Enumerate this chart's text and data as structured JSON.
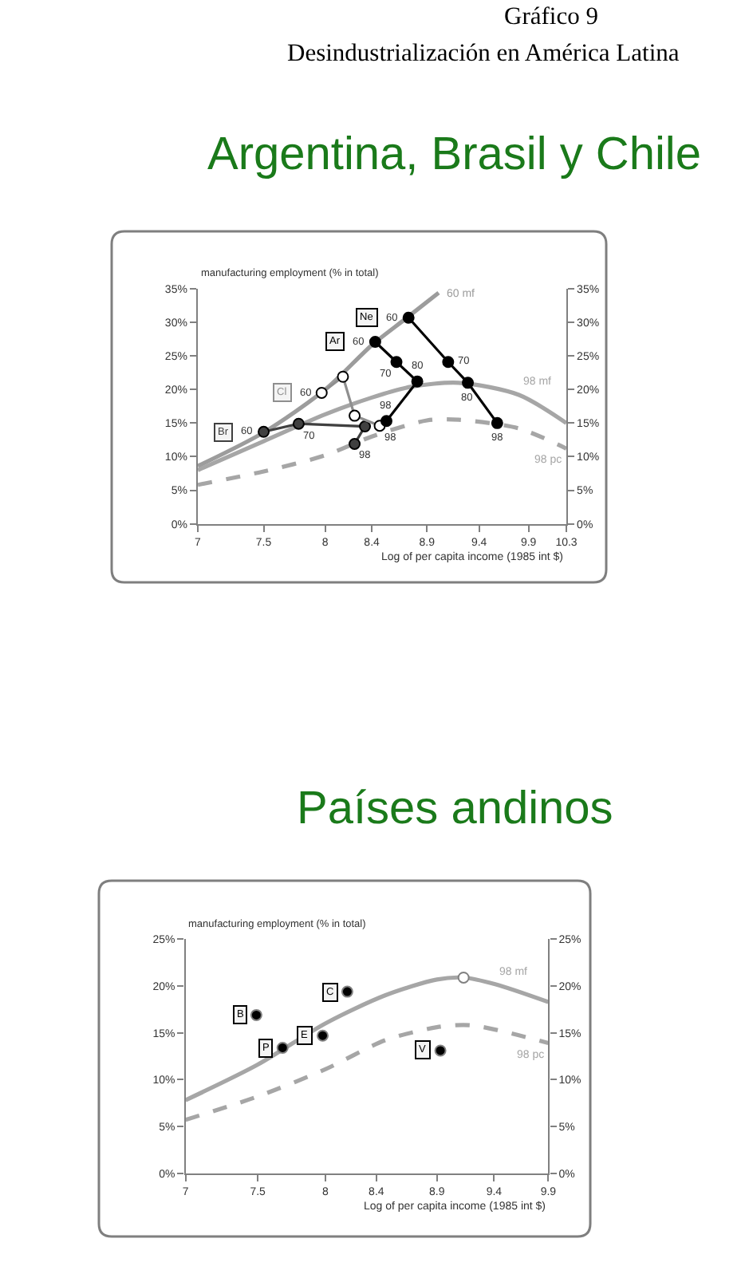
{
  "chart_data": [
    {
      "type": "line",
      "title": "Argentina, Brasil y Chile",
      "annotations": [
        "Gráfico 9",
        "Desindustrialización en América Latina",
        {
          "text": "60",
          "x": 7.5,
          "y": 13.7
        },
        {
          "text": "70",
          "x": 7.78,
          "y": 14.9
        },
        {
          "text": "98",
          "x": 8.25,
          "y": 11.9
        },
        {
          "text": "60",
          "x": 7.97,
          "y": 19.5
        },
        {
          "text": "98",
          "x": 8.47,
          "y": 14.6
        },
        {
          "text": "60",
          "x": 8.43,
          "y": 27.1
        },
        {
          "text": "70",
          "x": 8.62,
          "y": 24.1
        },
        {
          "text": "80",
          "x": 8.81,
          "y": 21.2
        },
        {
          "text": "98",
          "x": 8.53,
          "y": 15.3
        },
        {
          "text": "60",
          "x": 8.73,
          "y": 30.7
        },
        {
          "text": "70",
          "x": 9.1,
          "y": 24.1
        },
        {
          "text": "80",
          "x": 9.29,
          "y": 21.0
        },
        {
          "text": "98",
          "x": 9.58,
          "y": 15.0
        }
      ],
      "xlabel": "Log of per capita income (1985 int $)",
      "ylabel": "manufacturing employment (% in total)",
      "log": "x",
      "xlim": [
        7,
        10.3
      ],
      "xticks": [
        7,
        7.5,
        8,
        8.4,
        8.9,
        9.4,
        9.9,
        10.3
      ],
      "ylim": [
        0,
        35
      ],
      "yticks": [
        {
          "value": 0,
          "label": "0%"
        },
        {
          "value": 5,
          "label": "5%"
        },
        {
          "value": 10,
          "label": "10%"
        },
        {
          "value": 15,
          "label": "15%"
        },
        {
          "value": 20,
          "label": "20%"
        },
        {
          "value": 25,
          "label": "25%"
        },
        {
          "value": 30,
          "label": "30%"
        },
        {
          "value": 35,
          "label": "35%"
        }
      ],
      "y2lim": [
        0,
        35
      ],
      "y2ticks": [
        {
          "value": 0,
          "label": "0%"
        },
        {
          "value": 5,
          "label": "5%"
        },
        {
          "value": 10,
          "label": "10%"
        },
        {
          "value": 15,
          "label": "15%"
        },
        {
          "value": 20,
          "label": "20%"
        },
        {
          "value": 25,
          "label": "25%"
        },
        {
          "value": 30,
          "label": "30%"
        },
        {
          "value": 35,
          "label": "35%"
        }
      ],
      "marker": "circle",
      "line_style": "solid",
      "series": [
        {
          "name": "60 mf",
          "type": "line",
          "marker": "none",
          "color": "#9c9c9c",
          "x": [
            7,
            7.5,
            8,
            8.4,
            8.7,
            9.01
          ],
          "values": [
            8.6,
            13.6,
            20.0,
            26.6,
            30.5,
            34.4
          ]
        },
        {
          "name": "98 mf",
          "type": "line",
          "marker": "none",
          "color": "#a6a6a6",
          "x": [
            7,
            7.5,
            8,
            8.4,
            8.75,
            9.2,
            9.8,
            10.3
          ],
          "values": [
            8.0,
            12.3,
            16.3,
            18.8,
            20.4,
            21.0,
            19.2,
            15.0
          ]
        },
        {
          "name": "98 pc",
          "type": "line",
          "marker": "none",
          "line_style": "dashed",
          "color": "#a6a6a6",
          "x": [
            7,
            7.5,
            8,
            8.4,
            8.9,
            9.2,
            9.8,
            10.3
          ],
          "values": [
            5.8,
            7.8,
            10.2,
            13.0,
            15.4,
            15.5,
            14.2,
            11.2
          ]
        },
        {
          "name": "Br",
          "color": "#404040",
          "x": [
            7.5,
            7.78,
            8.34,
            8.25
          ],
          "values": [
            13.7,
            14.9,
            14.5,
            11.9
          ]
        },
        {
          "name": "Cl",
          "color": "#8f8f8f",
          "colors": [
            "#ffffff",
            "#ffffff",
            "#ffffff",
            "#ffffff"
          ],
          "x": [
            7.97,
            8.15,
            8.25,
            8.47
          ],
          "values": [
            19.5,
            21.9,
            16.1,
            14.6
          ]
        },
        {
          "name": "Ar",
          "color": "#000000",
          "x": [
            8.43,
            8.62,
            8.81,
            8.53
          ],
          "values": [
            27.1,
            24.1,
            21.2,
            15.3
          ]
        },
        {
          "name": "Ne",
          "color": "#000000",
          "x": [
            8.73,
            9.1,
            9.29,
            9.58
          ],
          "values": [
            30.7,
            24.1,
            21.0,
            15.0
          ]
        }
      ]
    },
    {
      "type": "scatter",
      "title": "Países andinos",
      "xlabel": "Log of per capita income (1985 int $)",
      "ylabel": "manufacturing employment (% in total)",
      "log": "x",
      "xlim": [
        7,
        9.9
      ],
      "xticks": [
        7,
        7.5,
        8,
        8.4,
        8.9,
        9.4,
        9.9
      ],
      "ylim": [
        0,
        25
      ],
      "yticks": [
        {
          "value": 0,
          "label": "0%"
        },
        {
          "value": 5,
          "label": "5%"
        },
        {
          "value": 10,
          "label": "10%"
        },
        {
          "value": 15,
          "label": "15%"
        },
        {
          "value": 20,
          "label": "20%"
        },
        {
          "value": 25,
          "label": "25%"
        }
      ],
      "y2lim": [
        0,
        25
      ],
      "y2ticks": [
        {
          "value": 0,
          "label": "0%"
        },
        {
          "value": 5,
          "label": "5%"
        },
        {
          "value": 10,
          "label": "10%"
        },
        {
          "value": 15,
          "label": "15%"
        },
        {
          "value": 20,
          "label": "20%"
        },
        {
          "value": 25,
          "label": "25%"
        }
      ],
      "marker": "circle",
      "line_style": "solid",
      "series": [
        {
          "name": "98 mf",
          "type": "line",
          "marker": "none",
          "color": "#a6a6a6",
          "x": [
            7,
            7.5,
            8,
            8.47,
            8.9,
            9.13,
            9.41,
            9.9
          ],
          "values": [
            7.8,
            11.6,
            16.0,
            19.0,
            20.7,
            20.9,
            20.2,
            18.3
          ]
        },
        {
          "type": "scatter",
          "color": "#ffffff",
          "x": [
            9.13
          ],
          "values": [
            20.9
          ]
        },
        {
          "name": "98 pc",
          "type": "line",
          "marker": "none",
          "line_style": "dashed",
          "color": "#a6a6a6",
          "x": [
            7,
            7.5,
            8,
            8.47,
            8.9,
            9.2,
            9.9
          ],
          "values": [
            5.7,
            8.2,
            11.1,
            14.2,
            15.6,
            15.8,
            13.9
          ]
        },
        {
          "name": "B",
          "color": "#000000",
          "x": [
            7.49
          ],
          "values": [
            16.9
          ]
        },
        {
          "name": "P",
          "color": "#000000",
          "x": [
            7.68
          ],
          "values": [
            13.4
          ]
        },
        {
          "name": "E",
          "color": "#000000",
          "x": [
            7.98
          ],
          "values": [
            14.7
          ]
        },
        {
          "name": "C",
          "color": "#000000",
          "x": [
            8.17
          ],
          "values": [
            19.4
          ]
        },
        {
          "name": "V",
          "color": "#000000",
          "x": [
            8.93
          ],
          "values": [
            13.1
          ]
        }
      ]
    }
  ]
}
